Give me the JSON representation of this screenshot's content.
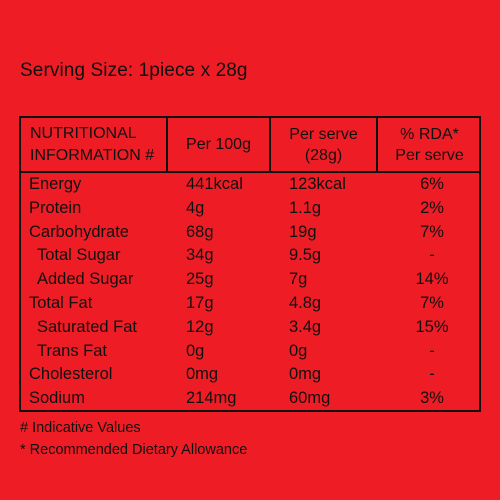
{
  "serving_size": "Serving Size: 1piece x 28g",
  "table": {
    "headers": {
      "nutrition_line1": "NUTRITIONAL",
      "nutrition_line2": "INFORMATION #",
      "per100": "Per 100g",
      "perserve_line1": "Per serve",
      "perserve_line2": "(28g)",
      "rda_line1": "% RDA*",
      "rda_line2": "Per serve"
    },
    "rows": [
      {
        "name": "Energy",
        "per100": "441kcal",
        "serve": "123kcal",
        "rda": "6%",
        "indent": false
      },
      {
        "name": "Protein",
        "per100": "4g",
        "serve": "1.1g",
        "rda": "2%",
        "indent": false
      },
      {
        "name": "Carbohydrate",
        "per100": "68g",
        "serve": "19g",
        "rda": "7%",
        "indent": false
      },
      {
        "name": "Total Sugar",
        "per100": "34g",
        "serve": "9.5g",
        "rda": "-",
        "indent": true
      },
      {
        "name": "Added Sugar",
        "per100": "25g",
        "serve": "7g",
        "rda": "14%",
        "indent": true
      },
      {
        "name": "Total Fat",
        "per100": "17g",
        "serve": "4.8g",
        "rda": "7%",
        "indent": false
      },
      {
        "name": "Saturated Fat",
        "per100": "12g",
        "serve": "3.4g",
        "rda": "15%",
        "indent": true
      },
      {
        "name": "Trans Fat",
        "per100": "0g",
        "serve": "0g",
        "rda": "-",
        "indent": true
      },
      {
        "name": "Cholesterol",
        "per100": "0mg",
        "serve": "0mg",
        "rda": "-",
        "indent": false
      },
      {
        "name": "Sodium",
        "per100": "214mg",
        "serve": "60mg",
        "rda": "3%",
        "indent": false
      }
    ]
  },
  "footnotes": {
    "indicative": "# Indicative Values",
    "rda": "* Recommended Dietary Allowance"
  },
  "colors": {
    "background": "#ee1c25",
    "text": "#111111"
  }
}
